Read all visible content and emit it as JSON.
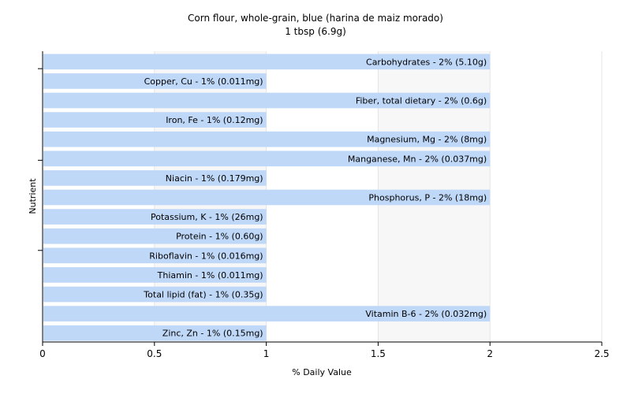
{
  "chart_data": {
    "type": "bar",
    "orientation": "horizontal",
    "title": "Corn flour, whole-grain, blue (harina de maiz morado)",
    "subtitle": "1 tbsp (6.9g)",
    "xlabel": "% Daily Value",
    "ylabel": "Nutrient",
    "xlim": [
      0,
      2.5
    ],
    "xticks": [
      0,
      0.5,
      1,
      1.5,
      2,
      2.5
    ],
    "grid": true,
    "bar_color": "#c0d8f8",
    "bars": [
      {
        "label": "Carbohydrates - 2% (5.10g)",
        "value": 2
      },
      {
        "label": "Copper, Cu - 1% (0.011mg)",
        "value": 1
      },
      {
        "label": "Fiber, total dietary - 2% (0.6g)",
        "value": 2
      },
      {
        "label": "Iron, Fe - 1% (0.12mg)",
        "value": 1
      },
      {
        "label": "Magnesium, Mg - 2% (8mg)",
        "value": 2
      },
      {
        "label": "Manganese, Mn - 2% (0.037mg)",
        "value": 2
      },
      {
        "label": "Niacin - 1% (0.179mg)",
        "value": 1
      },
      {
        "label": "Phosphorus, P - 2% (18mg)",
        "value": 2
      },
      {
        "label": "Potassium, K - 1% (26mg)",
        "value": 1
      },
      {
        "label": "Protein - 1% (0.60g)",
        "value": 1
      },
      {
        "label": "Riboflavin - 1% (0.016mg)",
        "value": 1
      },
      {
        "label": "Thiamin - 1% (0.011mg)",
        "value": 1
      },
      {
        "label": "Total lipid (fat) - 1% (0.35g)",
        "value": 1
      },
      {
        "label": "Vitamin B-6 - 2% (0.032mg)",
        "value": 2
      },
      {
        "label": "Zinc, Zn - 1% (0.15mg)",
        "value": 1
      }
    ]
  }
}
